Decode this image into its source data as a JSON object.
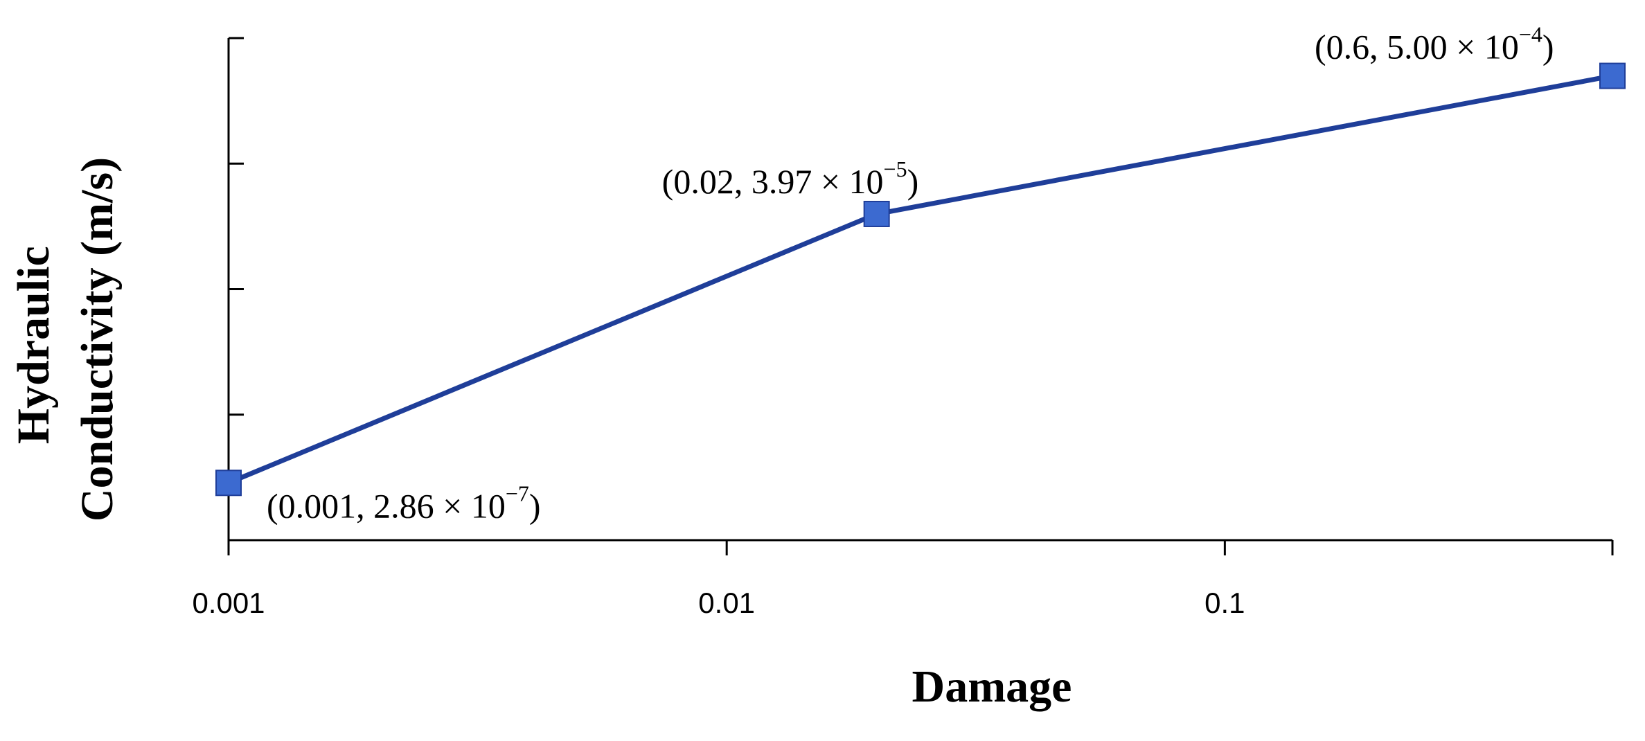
{
  "chart_data": {
    "type": "line",
    "x_scale": "log",
    "y_scale": "log",
    "xlabel": "Damage",
    "ylabel": [
      "Hydraulic",
      "Conductivity  (m/s)"
    ],
    "xlim": [
      0.001,
      0.6
    ],
    "ylim": [
      1e-07,
      0.001
    ],
    "x_ticks": [
      {
        "value": 0.001,
        "label": "0.001"
      },
      {
        "value": 0.01,
        "label": "0.01"
      },
      {
        "value": 0.1,
        "label": "0.1"
      }
    ],
    "y_ticks": [
      1e-06,
      1e-05,
      0.0001,
      0.001
    ],
    "grid": false,
    "series": [
      {
        "color": "#1f3e99",
        "marker_color": "#3c6ad0",
        "marker": "square",
        "x": [
          0.001,
          0.02,
          0.6
        ],
        "y": [
          2.86e-07,
          3.97e-05,
          0.0005
        ]
      }
    ],
    "annotations": [
      {
        "prefix": "(0.001, 2.86 × 10",
        "exp": "−7",
        "suffix": ")"
      },
      {
        "prefix": "(0.02, 3.97 × 10",
        "exp": "−5",
        "suffix": ")"
      },
      {
        "prefix": "(0.6, 5.00 × 10",
        "exp": "−4",
        "suffix": ")"
      }
    ]
  }
}
